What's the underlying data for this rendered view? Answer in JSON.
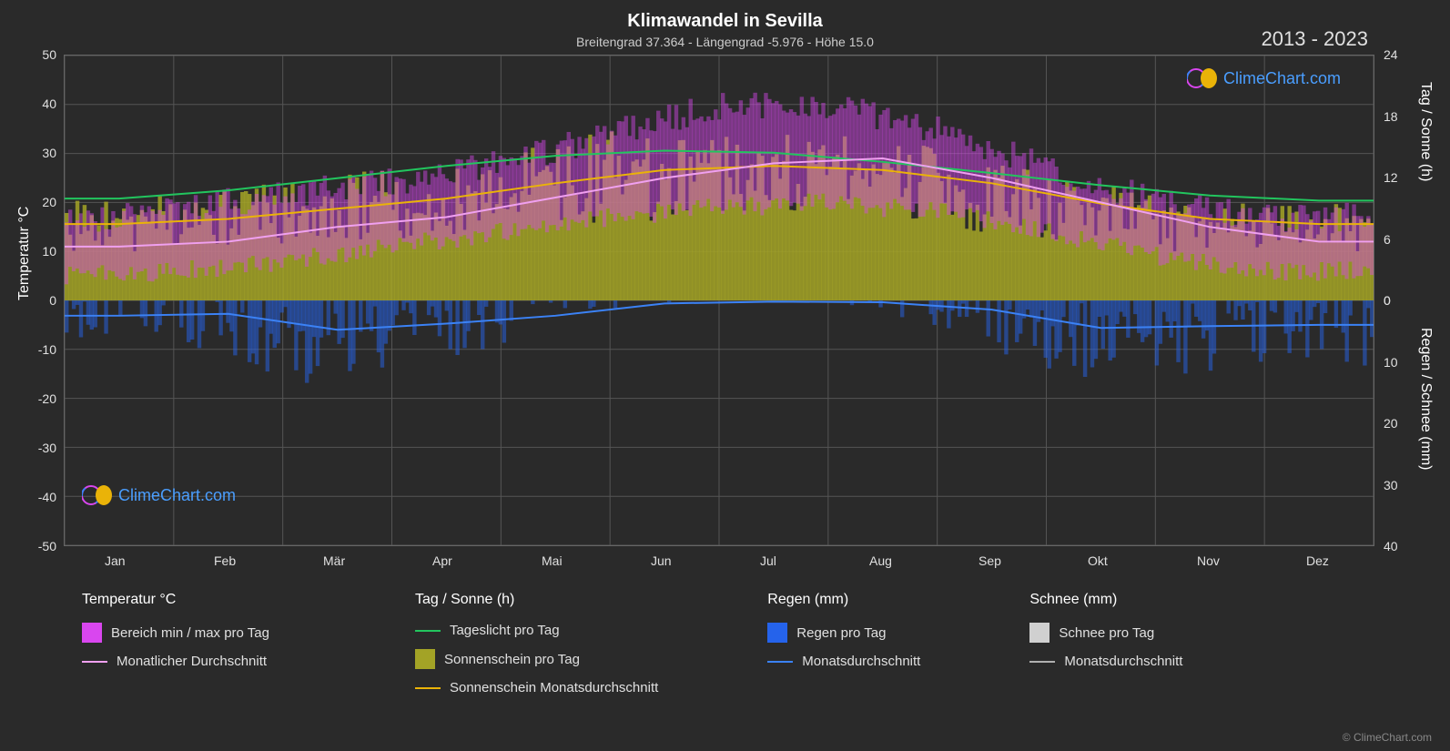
{
  "title": "Klimawandel in Sevilla",
  "subtitle": "Breitengrad 37.364 - Längengrad -5.976 - Höhe 15.0",
  "year_range": "2013 - 2023",
  "copyright": "© ClimeChart.com",
  "watermark_text": "ClimeChart.com",
  "chart": {
    "background_color": "#2a2a2a",
    "grid_color": "#555555",
    "text_color": "#e0e0e0",
    "title_fontsize": 20,
    "subtitle_fontsize": 14,
    "tick_fontsize": 14,
    "axis_label_fontsize": 16,
    "months": [
      "Jan",
      "Feb",
      "Mär",
      "Apr",
      "Mai",
      "Jun",
      "Jul",
      "Aug",
      "Sep",
      "Okt",
      "Nov",
      "Dez"
    ],
    "left_axis": {
      "label": "Temperatur °C",
      "min": -50,
      "max": 50,
      "ticks": [
        -50,
        -40,
        -30,
        -20,
        -10,
        0,
        10,
        20,
        30,
        40,
        50
      ]
    },
    "right_axis_top": {
      "label": "Tag / Sonne (h)",
      "min": 0,
      "max": 24,
      "ticks": [
        0,
        6,
        12,
        18,
        24
      ]
    },
    "right_axis_bottom": {
      "label": "Regen / Schnee (mm)",
      "min": 0,
      "max": 40,
      "ticks": [
        0,
        10,
        20,
        30,
        40
      ]
    },
    "series": {
      "temp_range": {
        "label": "Bereich min / max pro Tag",
        "color": "#d946ef",
        "low": [
          5,
          6,
          8,
          11,
          14,
          17,
          19,
          20,
          18,
          14,
          9,
          6
        ],
        "high": [
          16,
          18,
          22,
          24,
          28,
          34,
          40,
          40,
          35,
          27,
          20,
          17
        ]
      },
      "temp_avg": {
        "label": "Monatlicher Durchschnitt",
        "color": "#f0a0f0",
        "values": [
          11,
          12,
          15,
          17,
          21,
          25,
          28,
          29,
          25,
          20,
          15,
          12
        ]
      },
      "daylight": {
        "label": "Tageslicht pro Tag",
        "color": "#22c55e",
        "values": [
          10,
          10.8,
          12,
          13.2,
          14.2,
          14.7,
          14.5,
          13.6,
          12.5,
          11.3,
          10.3,
          9.8
        ]
      },
      "sunshine_bars": {
        "label": "Sonnenschein pro Tag",
        "color": "#a3a326"
      },
      "sunshine_avg": {
        "label": "Sonnenschein Monatsdurchschnitt",
        "color": "#eab308",
        "values": [
          7.5,
          8,
          9,
          10,
          11.5,
          12.8,
          13.2,
          12.8,
          11.5,
          9.5,
          8,
          7.5
        ]
      },
      "rain_bars": {
        "label": "Regen pro Tag",
        "color": "#2563eb"
      },
      "rain_avg": {
        "label": "Monatsdurchschnitt",
        "color": "#3b82f6",
        "values": [
          2.5,
          2.2,
          4.8,
          3.8,
          2.5,
          0.5,
          0.2,
          0.3,
          1.5,
          4.5,
          4.2,
          4.0
        ]
      },
      "snow_bars": {
        "label": "Schnee pro Tag",
        "color": "#d0d0d0"
      },
      "snow_avg": {
        "label": "Monatsdurchschnitt",
        "color": "#b0b0b0"
      }
    }
  },
  "legend": {
    "col1_header": "Temperatur °C",
    "col2_header": "Tag / Sonne (h)",
    "col3_header": "Regen (mm)",
    "col4_header": "Schnee (mm)"
  }
}
